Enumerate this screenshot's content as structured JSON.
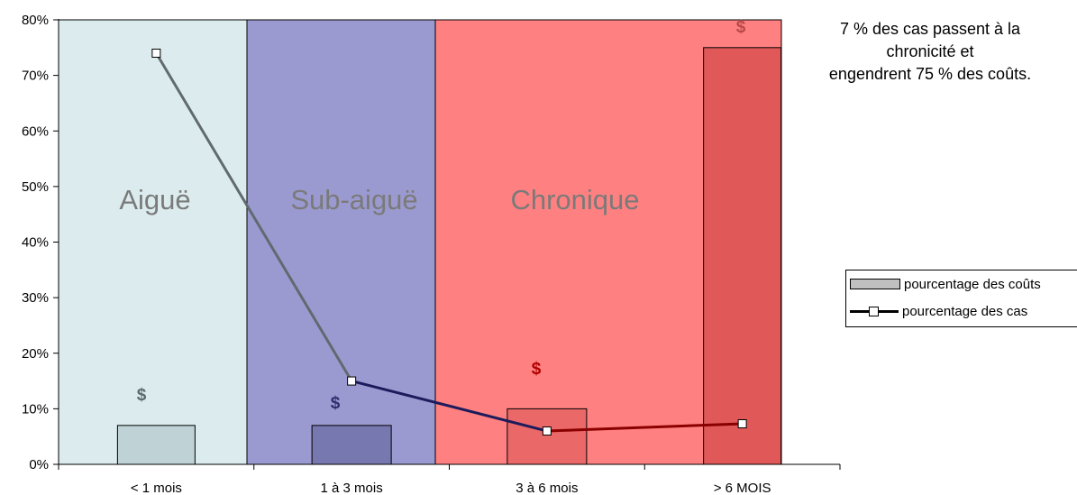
{
  "chart_data": {
    "type": "bar",
    "categories": [
      "< 1 mois",
      "1 à 3 mois",
      "3 à 6 mois",
      "> 6 MOIS"
    ],
    "ylim": [
      0,
      80
    ],
    "y_ticks": [
      "0%",
      "10%",
      "20%",
      "30%",
      "40%",
      "50%",
      "60%",
      "70%",
      "80%"
    ],
    "grid": false,
    "legend_position": "right",
    "series": [
      {
        "name": "pourcentage des coûts",
        "type": "bar",
        "values": [
          7,
          7,
          10,
          75
        ],
        "marker_label": "$"
      },
      {
        "name": "pourcentage des cas",
        "type": "line",
        "values": [
          74,
          15,
          6,
          7.3
        ]
      }
    ],
    "regions": [
      {
        "label": "Aiguë",
        "color": "#dcecee",
        "from": 0,
        "to": 1
      },
      {
        "label": "Sub-aiguë",
        "color": "#9b9ad0",
        "from": 1,
        "to": 2
      },
      {
        "label": "Chronique",
        "color": "#ff8080",
        "from": 2,
        "to": 4
      }
    ],
    "annotation": [
      "7 % des cas passent à la",
      "chronicité et",
      "engendrent 75 % des coûts."
    ]
  }
}
